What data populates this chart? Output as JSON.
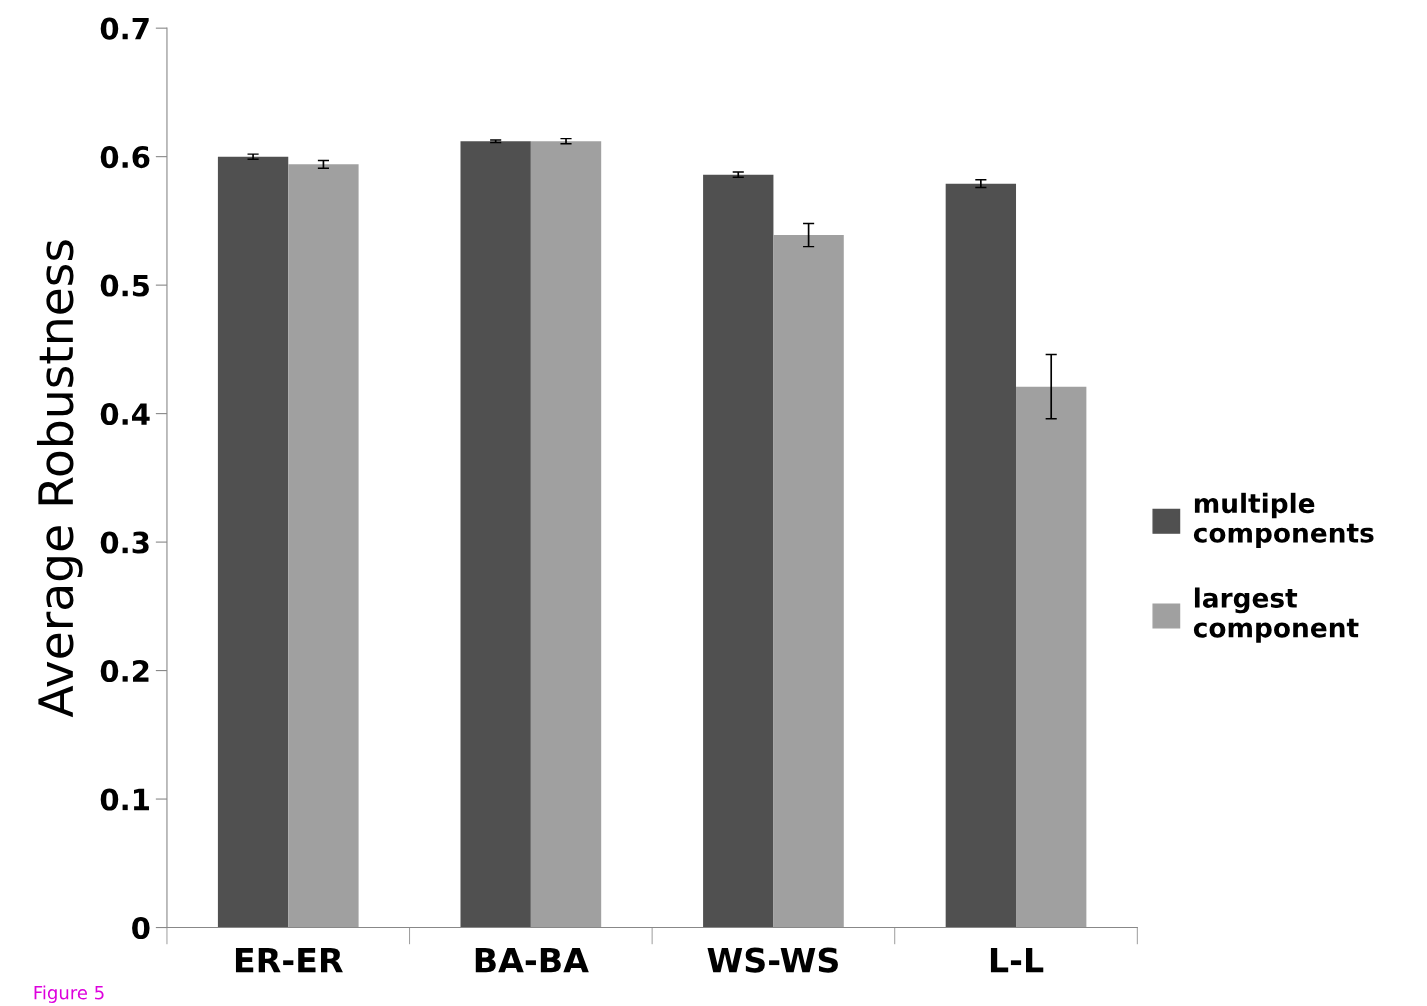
{
  "chart_data": {
    "type": "bar",
    "ylabel": "Average Robustness",
    "categories": [
      "ER-ER",
      "BA-BA",
      "WS-WS",
      "L-L"
    ],
    "series": [
      {
        "name": "multiple components",
        "color": "#505050",
        "values": [
          0.6,
          0.612,
          0.586,
          0.579
        ],
        "errors": [
          0.002,
          0.001,
          0.002,
          0.003
        ]
      },
      {
        "name": "largest component",
        "color": "#a0a0a0",
        "values": [
          0.594,
          0.612,
          0.539,
          0.421
        ],
        "errors": [
          0.003,
          0.002,
          0.009,
          0.025
        ]
      }
    ],
    "ylim": [
      0,
      0.7
    ],
    "yticks": [
      {
        "value": 0,
        "label": "0"
      },
      0.1,
      0.2,
      0.3,
      0.4,
      0.5,
      0.6,
      0.7
    ],
    "grid": false,
    "legend": "right",
    "annotations": [
      "Figure 5"
    ]
  }
}
